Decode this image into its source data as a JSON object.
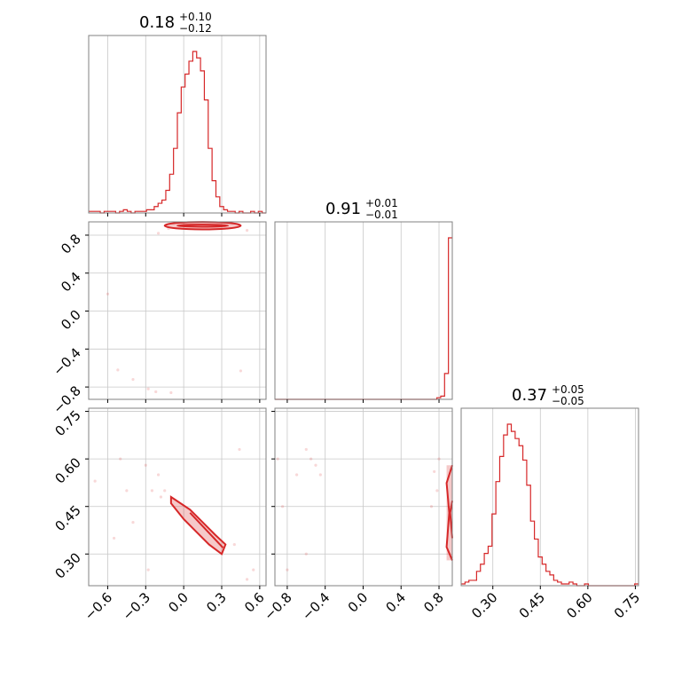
{
  "chart_data": {
    "type": "corner",
    "parameters": [
      {
        "median": 0.18,
        "plus": "+0.10",
        "minus": "−0.12",
        "range": [
          -0.75,
          0.65
        ],
        "ticks": [
          -0.6,
          -0.3,
          0.0,
          0.3,
          0.6
        ],
        "tick_labels": [
          "−0.6",
          "−0.3",
          "0.0",
          "0.3",
          "0.6"
        ]
      },
      {
        "median": 0.91,
        "plus": "+0.01",
        "minus": "−0.01",
        "range": [
          -0.93,
          0.94
        ],
        "ticks": [
          -0.8,
          -0.4,
          0.0,
          0.4,
          0.8
        ],
        "tick_labels": [
          "−0.8",
          "−0.4",
          "0.0",
          "0.4",
          "0.8"
        ]
      },
      {
        "median": 0.37,
        "plus": "+0.05",
        "minus": "−0.05",
        "range": [
          0.2,
          0.76
        ],
        "ticks": [
          0.3,
          0.45,
          0.6,
          0.75
        ],
        "tick_labels": [
          "0.30",
          "0.45",
          "0.60",
          "0.75"
        ]
      }
    ],
    "hist_1d": [
      {
        "edges": [
          -0.75,
          0.65
        ],
        "counts": [
          1,
          1,
          1,
          0,
          1,
          1,
          1,
          0,
          1,
          2,
          1,
          0,
          1,
          1,
          1,
          2,
          2,
          4,
          6,
          8,
          14,
          24,
          40,
          62,
          78,
          86,
          94,
          100,
          96,
          88,
          70,
          40,
          20,
          10,
          4,
          2,
          1,
          1,
          0,
          1,
          0,
          0,
          1,
          0,
          1,
          0
        ]
      },
      {
        "edges": [
          -0.93,
          0.94
        ],
        "counts": [
          0,
          0,
          0,
          0,
          0,
          0,
          0,
          0,
          0,
          0,
          0,
          0,
          0,
          0,
          0,
          0,
          0,
          0,
          0,
          0,
          0,
          0,
          0,
          0,
          0,
          0,
          0,
          0,
          0,
          0,
          0,
          0,
          0,
          0,
          0,
          0,
          0,
          0,
          0,
          0,
          0,
          0,
          1,
          2,
          16,
          100
        ]
      },
      {
        "edges": [
          0.2,
          0.76
        ],
        "counts": [
          1,
          2,
          3,
          3,
          8,
          12,
          18,
          22,
          40,
          58,
          72,
          84,
          90,
          86,
          82,
          78,
          70,
          56,
          36,
          26,
          16,
          12,
          8,
          6,
          3,
          2,
          1,
          1,
          2,
          1,
          0,
          0,
          1,
          0,
          0,
          0,
          0,
          0,
          0,
          0,
          0,
          0,
          0,
          0,
          0,
          1
        ]
      }
    ],
    "hist_2d": [
      {
        "pair": [
          0,
          1
        ],
        "points": [
          [
            -0.6,
            0.18
          ],
          [
            -0.52,
            -0.62
          ],
          [
            -0.4,
            -0.72
          ],
          [
            -0.28,
            -0.82
          ],
          [
            -0.22,
            -0.85
          ],
          [
            -0.1,
            -0.86
          ],
          [
            0.45,
            -0.63
          ],
          [
            -0.2,
            0.82
          ],
          [
            0.5,
            0.85
          ],
          [
            -0.12,
            0.87
          ]
        ],
        "core": {
          "x": [
            -0.15,
            0.45
          ],
          "y": [
            0.87,
            0.93
          ]
        }
      },
      {
        "pair": [
          0,
          2
        ],
        "points": [
          [
            -0.7,
            0.53
          ],
          [
            -0.5,
            0.6
          ],
          [
            -0.45,
            0.5
          ],
          [
            -0.3,
            0.58
          ],
          [
            -0.28,
            0.25
          ],
          [
            -0.25,
            0.5
          ],
          [
            -0.4,
            0.4
          ],
          [
            -0.2,
            0.55
          ],
          [
            -0.18,
            0.48
          ],
          [
            0.55,
            0.25
          ],
          [
            0.5,
            0.22
          ],
          [
            0.4,
            0.33
          ],
          [
            0.44,
            0.63
          ],
          [
            -0.55,
            0.35
          ],
          [
            -0.15,
            0.5
          ]
        ],
        "core": [
          [
            -0.1,
            0.48
          ],
          [
            0.05,
            0.44
          ],
          [
            0.15,
            0.4
          ],
          [
            0.25,
            0.36
          ],
          [
            0.33,
            0.33
          ],
          [
            0.3,
            0.3
          ],
          [
            0.2,
            0.33
          ],
          [
            0.1,
            0.37
          ],
          [
            0.0,
            0.41
          ],
          [
            -0.1,
            0.46
          ]
        ]
      },
      {
        "pair": [
          1,
          2
        ],
        "points": [
          [
            -0.85,
            0.45
          ],
          [
            -0.9,
            0.6
          ],
          [
            -0.7,
            0.55
          ],
          [
            -0.6,
            0.63
          ],
          [
            -0.55,
            0.6
          ],
          [
            -0.8,
            0.25
          ],
          [
            -0.5,
            0.58
          ],
          [
            -0.45,
            0.55
          ],
          [
            -0.6,
            0.3
          ],
          [
            0.75,
            0.56
          ],
          [
            0.78,
            0.5
          ],
          [
            0.8,
            0.6
          ],
          [
            0.72,
            0.45
          ]
        ],
        "core_x": [
          0.88,
          0.94
        ],
        "core_y": [
          0.28,
          0.58
        ]
      }
    ]
  }
}
